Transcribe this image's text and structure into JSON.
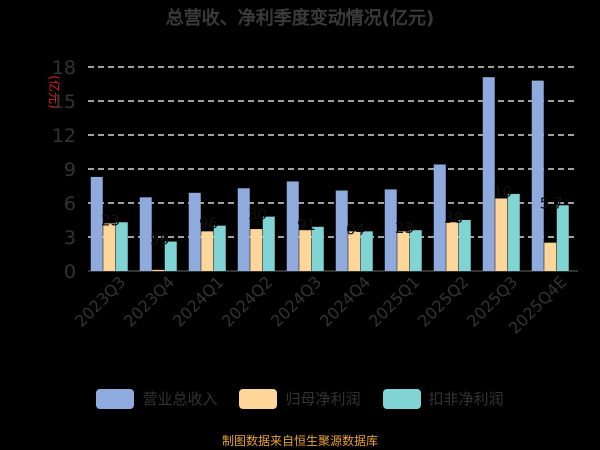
{
  "chart_data": {
    "type": "bar",
    "title": "总营收、净利季度变动情况(亿元)",
    "ylabel": "(亿元)",
    "categories": [
      "2023Q3",
      "2023Q4",
      "2024Q1",
      "2024Q2",
      "2024Q3",
      "2024Q4",
      "2025Q1",
      "2025Q2",
      "2025Q3",
      "2025Q4E"
    ],
    "yticks": [
      0,
      3,
      6,
      9,
      12,
      15,
      18
    ],
    "ylim": [
      0,
      18
    ],
    "grid": true,
    "legend_position": "bottom",
    "series": [
      {
        "name": "营业总收入",
        "color": "#8faadc",
        "values": [
          8.3,
          6.5,
          6.9,
          7.3,
          7.9,
          7.1,
          7.2,
          9.4,
          17.1,
          16.8
        ]
      },
      {
        "name": "归母净利润",
        "color": "#ffd699",
        "values": [
          4.2,
          0.1,
          3.5,
          3.7,
          3.6,
          3.5,
          3.5,
          4.3,
          6.4,
          2.5
        ]
      },
      {
        "name": "扣非净利润",
        "color": "#80d4d4",
        "values": [
          4.3,
          2.6,
          4.0,
          4.8,
          3.9,
          3.5,
          3.6,
          4.5,
          6.8,
          5.8
        ]
      }
    ],
    "annotations": [
      {
        "category": "2023Q3",
        "text": "23"
      },
      {
        "category": "2023Q4",
        "text": "56"
      },
      {
        "category": "2024Q1",
        "text": "96"
      },
      {
        "category": "2024Q2",
        "text": "30"
      },
      {
        "category": "2024Q3",
        "text": "91"
      },
      {
        "category": "2024Q4",
        "text": "04"
      },
      {
        "category": "2025Q1",
        "text": "23"
      },
      {
        "category": "2025Q2",
        "text": "38"
      },
      {
        "category": "2025Q3",
        "text": "10"
      },
      {
        "category": "2025Q4E",
        "text": "5.7"
      }
    ]
  },
  "footer": "制图数据来自恒生聚源数据库"
}
